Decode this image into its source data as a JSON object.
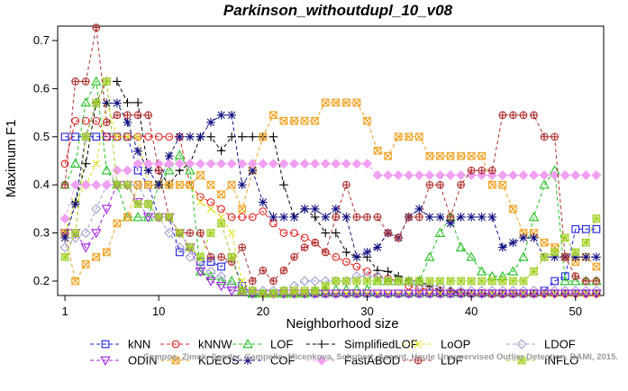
{
  "chart_data": {
    "type": "line",
    "title": "Parkinson_withoutdupl_10_v08",
    "xlabel": "Neighborhood size",
    "ylabel": "Maximum F1",
    "xlim": [
      1,
      52
    ],
    "ylim": [
      0.17,
      0.73
    ],
    "xticks": [
      1,
      10,
      20,
      30,
      40,
      50
    ],
    "yticks": [
      0.2,
      0.3,
      0.4,
      0.5,
      0.6,
      0.7
    ],
    "grid": false,
    "legend_position": "bottom",
    "credit": "Campos, Zimek, Sander, Campello, Micenkova, Schubert, Assent, Houle Unsupervised Outlier Detection. DAMI, 2015.",
    "x": [
      1,
      2,
      3,
      4,
      5,
      6,
      7,
      8,
      9,
      10,
      11,
      12,
      13,
      14,
      15,
      16,
      17,
      18,
      19,
      20,
      21,
      22,
      23,
      24,
      25,
      26,
      27,
      28,
      29,
      30,
      31,
      32,
      33,
      34,
      35,
      36,
      37,
      38,
      39,
      40,
      41,
      42,
      43,
      44,
      45,
      46,
      47,
      48,
      49,
      50,
      51,
      52
    ],
    "series": [
      {
        "name": "kNN",
        "color": "#2020e0",
        "marker": "square",
        "values": [
          0.5,
          0.5,
          0.5,
          0.5,
          0.5,
          0.5,
          0.5,
          0.43,
          0.4,
          0.333,
          0.333,
          0.26,
          0.27,
          0.24,
          0.24,
          0.23,
          0.25,
          0.19,
          0.174,
          0.174,
          0.174,
          0.174,
          0.174,
          0.174,
          0.174,
          0.174,
          0.174,
          0.174,
          0.174,
          0.174,
          0.174,
          0.174,
          0.174,
          0.174,
          0.174,
          0.174,
          0.174,
          0.174,
          0.174,
          0.174,
          0.174,
          0.174,
          0.174,
          0.174,
          0.174,
          0.174,
          0.18,
          0.2,
          0.21,
          0.308,
          0.308,
          0.308
        ]
      },
      {
        "name": "kNNW",
        "color": "#e02020",
        "marker": "circle",
        "values": [
          0.444,
          0.533,
          0.533,
          0.533,
          0.5,
          0.5,
          0.5,
          0.5,
          0.5,
          0.5,
          0.5,
          0.5,
          0.4,
          0.375,
          0.364,
          0.35,
          0.333,
          0.333,
          0.333,
          0.345,
          0.32,
          0.3,
          0.3,
          0.29,
          0.28,
          0.26,
          0.25,
          0.24,
          0.23,
          0.22,
          0.21,
          0.205,
          0.2,
          0.19,
          0.185,
          0.182,
          0.18,
          0.178,
          0.176,
          0.175,
          0.175,
          0.174,
          0.174,
          0.174,
          0.174,
          0.174,
          0.174,
          0.174,
          0.174,
          0.174,
          0.174,
          0.174
        ]
      },
      {
        "name": "LOF",
        "color": "#20c020",
        "marker": "triangle-up",
        "values": [
          0.4,
          0.444,
          0.571,
          0.615,
          0.43,
          0.4,
          0.333,
          0.333,
          0.333,
          0.4,
          0.43,
          0.462,
          0.43,
          0.22,
          0.21,
          0.2,
          0.2,
          0.18,
          0.174,
          0.174,
          0.174,
          0.174,
          0.174,
          0.174,
          0.18,
          0.18,
          0.182,
          0.182,
          0.182,
          0.182,
          0.2,
          0.2,
          0.2,
          0.2,
          0.2,
          0.25,
          0.3,
          0.333,
          0.27,
          0.25,
          0.22,
          0.21,
          0.21,
          0.22,
          0.25,
          0.333,
          0.4,
          0.43,
          0.2,
          0.2,
          0.2,
          0.2
        ]
      },
      {
        "name": "SimplifiedLOF",
        "color": "#000000",
        "marker": "plus",
        "values": [
          0.3,
          0.364,
          0.444,
          0.571,
          0.615,
          0.615,
          0.571,
          0.571,
          0.43,
          0.43,
          0.4,
          0.43,
          0.444,
          0.5,
          0.5,
          0.471,
          0.5,
          0.5,
          0.5,
          0.5,
          0.5,
          0.4,
          0.333,
          0.35,
          0.333,
          0.3,
          0.3,
          0.26,
          0.25,
          0.25,
          0.222,
          0.22,
          0.21,
          0.2,
          0.2,
          0.19,
          0.18,
          0.18,
          0.176,
          0.174,
          0.174,
          0.174,
          0.174,
          0.174,
          0.174,
          0.174,
          0.174,
          0.174,
          0.174,
          0.174,
          0.174,
          0.174
        ]
      },
      {
        "name": "LoOP",
        "color": "#e0e020",
        "marker": "cross",
        "values": [
          0.3,
          0.364,
          0.4,
          0.444,
          0.571,
          0.5,
          0.5,
          0.5,
          0.4,
          0.4,
          0.4,
          0.4,
          0.4,
          0.364,
          0.35,
          0.333,
          0.3,
          0.2,
          0.18,
          0.174,
          0.174,
          0.174,
          0.174,
          0.174,
          0.174,
          0.174,
          0.174,
          0.174,
          0.174,
          0.174,
          0.174,
          0.174,
          0.174,
          0.174,
          0.174,
          0.174,
          0.174,
          0.174,
          0.174,
          0.174,
          0.174,
          0.174,
          0.174,
          0.174,
          0.174,
          0.174,
          0.174,
          0.174,
          0.174,
          0.174,
          0.174,
          0.174
        ]
      },
      {
        "name": "LDOF",
        "color": "#a0a0d0",
        "marker": "diamond",
        "values": [
          0.27,
          0.29,
          0.3,
          0.35,
          0.4,
          0.4,
          0.4,
          0.4,
          0.36,
          0.333,
          0.3,
          0.27,
          0.25,
          0.23,
          0.22,
          0.21,
          0.19,
          0.18,
          0.18,
          0.18,
          0.18,
          0.18,
          0.19,
          0.2,
          0.2,
          0.2,
          0.2,
          0.2,
          0.21,
          0.21,
          0.21,
          0.2,
          0.2,
          0.2,
          0.19,
          0.19,
          0.19,
          0.18,
          0.18,
          0.18,
          0.18,
          0.18,
          0.18,
          0.18,
          0.18,
          0.18,
          0.18,
          0.18,
          0.18,
          0.18,
          0.18,
          0.18
        ]
      },
      {
        "name": "ODIN",
        "color": "#a020e0",
        "marker": "triangle-down",
        "values": [
          0.3,
          0.3,
          0.27,
          0.3,
          0.35,
          0.4,
          0.4,
          0.364,
          0.333,
          0.333,
          0.333,
          0.3,
          0.27,
          0.22,
          0.2,
          0.19,
          0.18,
          0.18,
          0.174,
          0.174,
          0.174,
          0.174,
          0.174,
          0.174,
          0.174,
          0.174,
          0.174,
          0.174,
          0.174,
          0.174,
          0.174,
          0.174,
          0.174,
          0.174,
          0.174,
          0.174,
          0.174,
          0.174,
          0.174,
          0.174,
          0.174,
          0.174,
          0.174,
          0.174,
          0.174,
          0.174,
          0.174,
          0.174,
          0.174,
          0.174,
          0.174,
          0.174
        ]
      },
      {
        "name": "KDEOS",
        "color": "#f0a020",
        "marker": "square-x",
        "values": [
          0.3,
          0.2,
          0.235,
          0.25,
          0.26,
          0.32,
          0.333,
          0.4,
          0.4,
          0.4,
          0.4,
          0.4,
          0.4,
          0.42,
          0.4,
          0.38,
          0.4,
          0.35,
          0.43,
          0.5,
          0.545,
          0.533,
          0.533,
          0.533,
          0.533,
          0.571,
          0.571,
          0.571,
          0.571,
          0.533,
          0.471,
          0.46,
          0.5,
          0.5,
          0.5,
          0.46,
          0.46,
          0.46,
          0.46,
          0.46,
          0.46,
          0.4,
          0.4,
          0.35,
          0.3,
          0.3,
          0.28,
          0.27,
          0.25,
          0.24,
          0.25,
          0.23
        ]
      },
      {
        "name": "COF",
        "color": "#101080",
        "marker": "asterisk",
        "values": [
          0.29,
          0.36,
          0.5,
          0.57,
          0.57,
          0.57,
          0.53,
          0.47,
          0.43,
          0.4,
          0.46,
          0.5,
          0.5,
          0.5,
          0.53,
          0.545,
          0.545,
          0.4,
          0.43,
          0.364,
          0.333,
          0.333,
          0.333,
          0.35,
          0.35,
          0.333,
          0.35,
          0.333,
          0.25,
          0.26,
          0.27,
          0.3,
          0.29,
          0.333,
          0.35,
          0.333,
          0.333,
          0.32,
          0.333,
          0.333,
          0.333,
          0.333,
          0.27,
          0.28,
          0.29,
          0.29,
          0.25,
          0.25,
          0.25,
          0.25,
          0.25,
          0.25
        ]
      },
      {
        "name": "FastABOD",
        "color": "#f0a0f0",
        "marker": "diamond-filled",
        "values": [
          0.33,
          0.4,
          0.4,
          0.4,
          0.4,
          0.43,
          0.43,
          0.444,
          0.444,
          0.444,
          0.444,
          0.444,
          0.444,
          0.444,
          0.444,
          0.444,
          0.444,
          0.444,
          0.444,
          0.444,
          0.444,
          0.444,
          0.444,
          0.444,
          0.444,
          0.444,
          0.444,
          0.444,
          0.444,
          0.444,
          0.42,
          0.42,
          0.42,
          0.42,
          0.42,
          0.42,
          0.42,
          0.42,
          0.42,
          0.42,
          0.42,
          0.42,
          0.42,
          0.42,
          0.42,
          0.42,
          0.42,
          0.42,
          0.42,
          0.42,
          0.42,
          0.42
        ]
      },
      {
        "name": "LDF",
        "color": "#b03030",
        "marker": "circle-plus",
        "values": [
          0.4,
          0.615,
          0.615,
          0.727,
          0.53,
          0.545,
          0.545,
          0.545,
          0.545,
          0.43,
          0.333,
          0.3,
          0.3,
          0.3,
          0.25,
          0.25,
          0.24,
          0.27,
          0.2,
          0.222,
          0.2,
          0.222,
          0.25,
          0.27,
          0.28,
          0.26,
          0.333,
          0.4,
          0.333,
          0.333,
          0.333,
          0.3,
          0.29,
          0.333,
          0.333,
          0.4,
          0.4,
          0.333,
          0.4,
          0.43,
          0.43,
          0.43,
          0.545,
          0.545,
          0.545,
          0.545,
          0.5,
          0.5,
          0.25,
          0.21,
          0.2,
          0.2
        ]
      },
      {
        "name": "INFLO",
        "color": "#a0d020",
        "marker": "star-square",
        "values": [
          0.25,
          0.3,
          0.5,
          0.57,
          0.615,
          0.4,
          0.4,
          0.36,
          0.36,
          0.333,
          0.333,
          0.3,
          0.27,
          0.25,
          0.3,
          0.32,
          0.25,
          0.18,
          0.18,
          0.174,
          0.174,
          0.18,
          0.18,
          0.18,
          0.18,
          0.19,
          0.2,
          0.2,
          0.2,
          0.2,
          0.2,
          0.2,
          0.2,
          0.2,
          0.2,
          0.2,
          0.2,
          0.2,
          0.2,
          0.2,
          0.2,
          0.2,
          0.2,
          0.2,
          0.2,
          0.22,
          0.25,
          0.26,
          0.29,
          0.26,
          0.28,
          0.33
        ]
      }
    ]
  }
}
